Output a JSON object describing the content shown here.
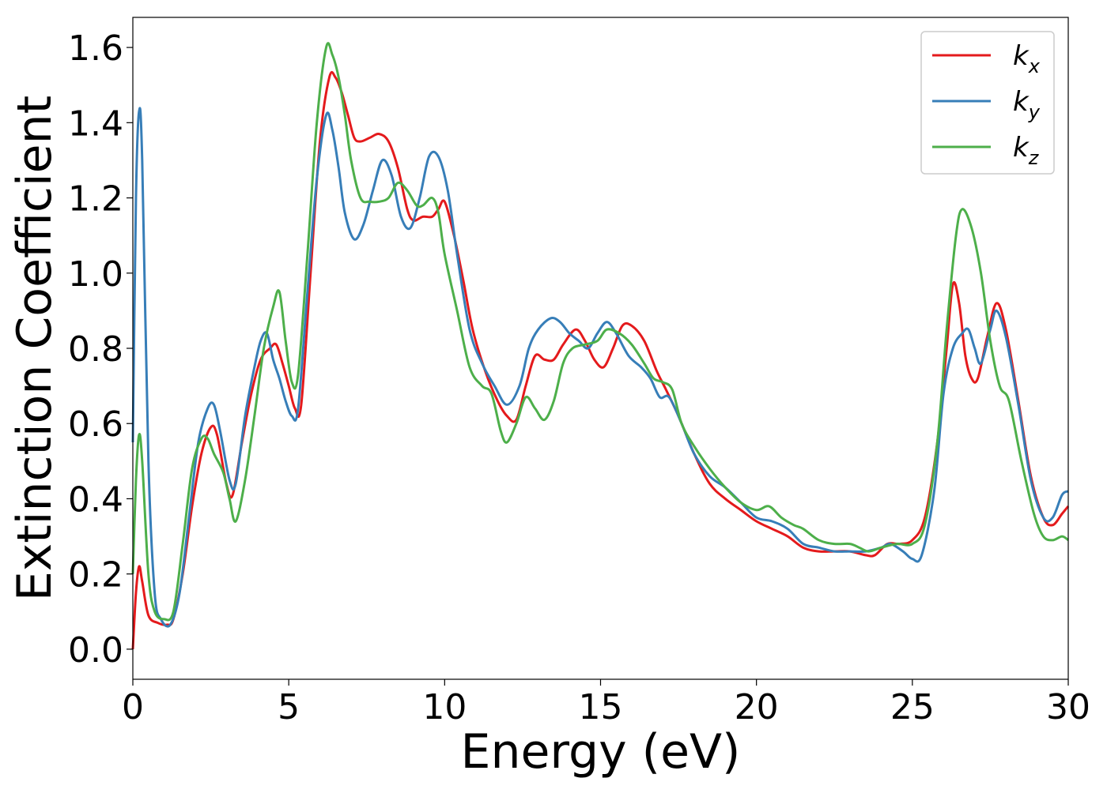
{
  "chart_data": {
    "type": "line",
    "title": "",
    "xlabel": "Energy (eV)",
    "ylabel": "Extinction Coefficient",
    "xlim": [
      0,
      30
    ],
    "ylim": [
      -0.08,
      1.68
    ],
    "xticks": [
      "0",
      "5",
      "10",
      "15",
      "20",
      "25",
      "30"
    ],
    "yticks": [
      "0.0",
      "0.2",
      "0.4",
      "0.6",
      "0.8",
      "1.0",
      "1.2",
      "1.4",
      "1.6"
    ],
    "grid": false,
    "legend_position": "top-right",
    "series": [
      {
        "name": "k_x",
        "label_base": "k",
        "label_sub": "x",
        "color": "#e41a1c",
        "points": [
          [
            0,
            0.0
          ],
          [
            0.1,
            0.15
          ],
          [
            0.2,
            0.22
          ],
          [
            0.3,
            0.18
          ],
          [
            0.5,
            0.09
          ],
          [
            0.8,
            0.07
          ],
          [
            1.1,
            0.065
          ],
          [
            1.3,
            0.08
          ],
          [
            1.6,
            0.2
          ],
          [
            1.9,
            0.38
          ],
          [
            2.2,
            0.52
          ],
          [
            2.5,
            0.59
          ],
          [
            2.7,
            0.57
          ],
          [
            3.0,
            0.44
          ],
          [
            3.2,
            0.41
          ],
          [
            3.5,
            0.55
          ],
          [
            3.8,
            0.68
          ],
          [
            4.1,
            0.77
          ],
          [
            4.4,
            0.8
          ],
          [
            4.6,
            0.81
          ],
          [
            4.8,
            0.76
          ],
          [
            5.0,
            0.7
          ],
          [
            5.2,
            0.64
          ],
          [
            5.4,
            0.65
          ],
          [
            5.7,
            1.0
          ],
          [
            6.0,
            1.35
          ],
          [
            6.3,
            1.52
          ],
          [
            6.5,
            1.52
          ],
          [
            6.7,
            1.48
          ],
          [
            6.9,
            1.42
          ],
          [
            7.1,
            1.36
          ],
          [
            7.3,
            1.35
          ],
          [
            7.6,
            1.36
          ],
          [
            7.9,
            1.37
          ],
          [
            8.2,
            1.35
          ],
          [
            8.5,
            1.28
          ],
          [
            8.8,
            1.17
          ],
          [
            9.0,
            1.14
          ],
          [
            9.3,
            1.15
          ],
          [
            9.6,
            1.15
          ],
          [
            9.8,
            1.17
          ],
          [
            10.0,
            1.19
          ],
          [
            10.3,
            1.1
          ],
          [
            10.6,
            0.98
          ],
          [
            10.9,
            0.85
          ],
          [
            11.3,
            0.74
          ],
          [
            11.7,
            0.66
          ],
          [
            12.0,
            0.62
          ],
          [
            12.3,
            0.61
          ],
          [
            12.6,
            0.7
          ],
          [
            12.9,
            0.78
          ],
          [
            13.2,
            0.77
          ],
          [
            13.5,
            0.77
          ],
          [
            13.8,
            0.81
          ],
          [
            14.2,
            0.85
          ],
          [
            14.5,
            0.82
          ],
          [
            14.8,
            0.77
          ],
          [
            15.1,
            0.75
          ],
          [
            15.4,
            0.8
          ],
          [
            15.7,
            0.86
          ],
          [
            16.0,
            0.86
          ],
          [
            16.4,
            0.82
          ],
          [
            16.8,
            0.74
          ],
          [
            17.1,
            0.69
          ],
          [
            17.5,
            0.62
          ],
          [
            18.0,
            0.52
          ],
          [
            18.5,
            0.44
          ],
          [
            19.0,
            0.4
          ],
          [
            19.5,
            0.37
          ],
          [
            20.0,
            0.34
          ],
          [
            20.5,
            0.32
          ],
          [
            21.0,
            0.3
          ],
          [
            21.5,
            0.27
          ],
          [
            22.0,
            0.26
          ],
          [
            22.5,
            0.26
          ],
          [
            23.0,
            0.26
          ],
          [
            23.5,
            0.25
          ],
          [
            23.8,
            0.25
          ],
          [
            24.2,
            0.28
          ],
          [
            24.6,
            0.28
          ],
          [
            25.0,
            0.29
          ],
          [
            25.4,
            0.35
          ],
          [
            25.8,
            0.55
          ],
          [
            26.1,
            0.8
          ],
          [
            26.3,
            0.97
          ],
          [
            26.5,
            0.92
          ],
          [
            26.7,
            0.78
          ],
          [
            26.9,
            0.72
          ],
          [
            27.1,
            0.72
          ],
          [
            27.4,
            0.83
          ],
          [
            27.7,
            0.92
          ],
          [
            28.0,
            0.85
          ],
          [
            28.4,
            0.66
          ],
          [
            28.8,
            0.46
          ],
          [
            29.2,
            0.35
          ],
          [
            29.5,
            0.33
          ],
          [
            29.8,
            0.36
          ],
          [
            30.0,
            0.38
          ]
        ]
      },
      {
        "name": "k_y",
        "label_base": "k",
        "label_sub": "y",
        "color": "#377eb8",
        "points": [
          [
            0,
            0.55
          ],
          [
            0.1,
            1.2
          ],
          [
            0.2,
            1.43
          ],
          [
            0.3,
            1.3
          ],
          [
            0.5,
            0.5
          ],
          [
            0.7,
            0.15
          ],
          [
            0.9,
            0.08
          ],
          [
            1.2,
            0.065
          ],
          [
            1.5,
            0.15
          ],
          [
            1.8,
            0.35
          ],
          [
            2.1,
            0.55
          ],
          [
            2.4,
            0.64
          ],
          [
            2.6,
            0.65
          ],
          [
            2.8,
            0.58
          ],
          [
            3.1,
            0.45
          ],
          [
            3.3,
            0.44
          ],
          [
            3.6,
            0.62
          ],
          [
            3.9,
            0.75
          ],
          [
            4.1,
            0.82
          ],
          [
            4.3,
            0.84
          ],
          [
            4.5,
            0.77
          ],
          [
            4.7,
            0.72
          ],
          [
            4.9,
            0.66
          ],
          [
            5.1,
            0.62
          ],
          [
            5.3,
            0.64
          ],
          [
            5.6,
            0.95
          ],
          [
            5.9,
            1.25
          ],
          [
            6.2,
            1.42
          ],
          [
            6.4,
            1.38
          ],
          [
            6.6,
            1.28
          ],
          [
            6.8,
            1.16
          ],
          [
            7.1,
            1.09
          ],
          [
            7.4,
            1.13
          ],
          [
            7.7,
            1.22
          ],
          [
            8.0,
            1.3
          ],
          [
            8.3,
            1.26
          ],
          [
            8.6,
            1.15
          ],
          [
            8.9,
            1.12
          ],
          [
            9.2,
            1.2
          ],
          [
            9.5,
            1.31
          ],
          [
            9.8,
            1.31
          ],
          [
            10.1,
            1.22
          ],
          [
            10.4,
            1.05
          ],
          [
            10.8,
            0.85
          ],
          [
            11.2,
            0.76
          ],
          [
            11.6,
            0.7
          ],
          [
            12.0,
            0.65
          ],
          [
            12.4,
            0.7
          ],
          [
            12.7,
            0.8
          ],
          [
            13.0,
            0.85
          ],
          [
            13.4,
            0.88
          ],
          [
            13.7,
            0.87
          ],
          [
            14.0,
            0.84
          ],
          [
            14.3,
            0.82
          ],
          [
            14.6,
            0.8
          ],
          [
            14.9,
            0.84
          ],
          [
            15.2,
            0.87
          ],
          [
            15.5,
            0.84
          ],
          [
            15.9,
            0.78
          ],
          [
            16.3,
            0.75
          ],
          [
            16.6,
            0.72
          ],
          [
            16.9,
            0.67
          ],
          [
            17.2,
            0.67
          ],
          [
            17.6,
            0.6
          ],
          [
            18.0,
            0.52
          ],
          [
            18.5,
            0.46
          ],
          [
            19.0,
            0.43
          ],
          [
            19.5,
            0.39
          ],
          [
            20.0,
            0.35
          ],
          [
            20.5,
            0.34
          ],
          [
            21.0,
            0.32
          ],
          [
            21.5,
            0.28
          ],
          [
            22.0,
            0.27
          ],
          [
            22.5,
            0.26
          ],
          [
            23.0,
            0.26
          ],
          [
            23.5,
            0.26
          ],
          [
            24.0,
            0.27
          ],
          [
            24.3,
            0.28
          ],
          [
            24.7,
            0.26
          ],
          [
            25.0,
            0.24
          ],
          [
            25.3,
            0.25
          ],
          [
            25.7,
            0.42
          ],
          [
            26.0,
            0.68
          ],
          [
            26.3,
            0.8
          ],
          [
            26.6,
            0.84
          ],
          [
            26.8,
            0.85
          ],
          [
            27.0,
            0.8
          ],
          [
            27.2,
            0.76
          ],
          [
            27.5,
            0.85
          ],
          [
            27.7,
            0.9
          ],
          [
            28.0,
            0.83
          ],
          [
            28.4,
            0.65
          ],
          [
            28.8,
            0.45
          ],
          [
            29.2,
            0.35
          ],
          [
            29.5,
            0.35
          ],
          [
            29.8,
            0.41
          ],
          [
            30.0,
            0.42
          ]
        ]
      },
      {
        "name": "k_z",
        "label_base": "k",
        "label_sub": "z",
        "color": "#4daf4a",
        "points": [
          [
            0,
            0.2
          ],
          [
            0.1,
            0.45
          ],
          [
            0.2,
            0.57
          ],
          [
            0.3,
            0.5
          ],
          [
            0.5,
            0.2
          ],
          [
            0.7,
            0.1
          ],
          [
            1.0,
            0.08
          ],
          [
            1.3,
            0.1
          ],
          [
            1.6,
            0.28
          ],
          [
            1.9,
            0.48
          ],
          [
            2.2,
            0.56
          ],
          [
            2.4,
            0.56
          ],
          [
            2.6,
            0.52
          ],
          [
            2.9,
            0.47
          ],
          [
            3.1,
            0.4
          ],
          [
            3.3,
            0.34
          ],
          [
            3.6,
            0.45
          ],
          [
            3.9,
            0.62
          ],
          [
            4.2,
            0.8
          ],
          [
            4.5,
            0.91
          ],
          [
            4.7,
            0.95
          ],
          [
            4.9,
            0.82
          ],
          [
            5.1,
            0.71
          ],
          [
            5.3,
            0.73
          ],
          [
            5.6,
            1.05
          ],
          [
            5.9,
            1.4
          ],
          [
            6.2,
            1.6
          ],
          [
            6.4,
            1.58
          ],
          [
            6.6,
            1.52
          ],
          [
            6.8,
            1.42
          ],
          [
            7.0,
            1.3
          ],
          [
            7.3,
            1.2
          ],
          [
            7.6,
            1.19
          ],
          [
            7.9,
            1.19
          ],
          [
            8.2,
            1.2
          ],
          [
            8.5,
            1.24
          ],
          [
            8.8,
            1.22
          ],
          [
            9.1,
            1.18
          ],
          [
            9.3,
            1.18
          ],
          [
            9.6,
            1.2
          ],
          [
            9.8,
            1.16
          ],
          [
            10.0,
            1.05
          ],
          [
            10.4,
            0.9
          ],
          [
            10.8,
            0.75
          ],
          [
            11.2,
            0.7
          ],
          [
            11.5,
            0.68
          ],
          [
            11.8,
            0.58
          ],
          [
            12.0,
            0.55
          ],
          [
            12.3,
            0.6
          ],
          [
            12.6,
            0.67
          ],
          [
            12.9,
            0.64
          ],
          [
            13.2,
            0.61
          ],
          [
            13.5,
            0.66
          ],
          [
            13.8,
            0.76
          ],
          [
            14.1,
            0.8
          ],
          [
            14.5,
            0.81
          ],
          [
            14.9,
            0.82
          ],
          [
            15.2,
            0.85
          ],
          [
            15.6,
            0.84
          ],
          [
            16.0,
            0.81
          ],
          [
            16.4,
            0.76
          ],
          [
            16.7,
            0.72
          ],
          [
            17.0,
            0.71
          ],
          [
            17.3,
            0.69
          ],
          [
            17.6,
            0.6
          ],
          [
            18.0,
            0.54
          ],
          [
            18.5,
            0.48
          ],
          [
            19.0,
            0.43
          ],
          [
            19.5,
            0.39
          ],
          [
            20.0,
            0.37
          ],
          [
            20.4,
            0.38
          ],
          [
            20.8,
            0.35
          ],
          [
            21.2,
            0.33
          ],
          [
            21.5,
            0.32
          ],
          [
            22.0,
            0.29
          ],
          [
            22.5,
            0.28
          ],
          [
            23.0,
            0.28
          ],
          [
            23.3,
            0.27
          ],
          [
            23.6,
            0.26
          ],
          [
            24.0,
            0.27
          ],
          [
            24.5,
            0.28
          ],
          [
            25.0,
            0.28
          ],
          [
            25.4,
            0.33
          ],
          [
            25.8,
            0.55
          ],
          [
            26.1,
            0.85
          ],
          [
            26.4,
            1.1
          ],
          [
            26.6,
            1.17
          ],
          [
            26.9,
            1.12
          ],
          [
            27.2,
            1.0
          ],
          [
            27.5,
            0.82
          ],
          [
            27.8,
            0.7
          ],
          [
            28.1,
            0.66
          ],
          [
            28.5,
            0.5
          ],
          [
            28.9,
            0.36
          ],
          [
            29.2,
            0.3
          ],
          [
            29.5,
            0.29
          ],
          [
            29.8,
            0.3
          ],
          [
            30.0,
            0.29
          ]
        ]
      }
    ]
  }
}
